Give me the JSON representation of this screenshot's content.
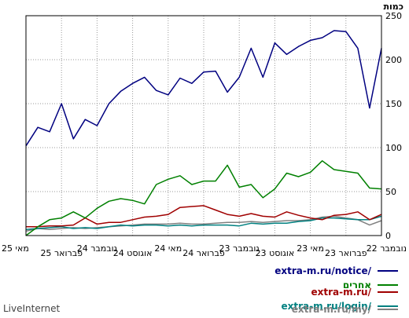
{
  "brand": "LiveInternet",
  "chart_data": {
    "type": "line",
    "ylabel": "כמות",
    "ylim": [
      0,
      250
    ],
    "yticks": [
      0,
      50,
      100,
      150,
      200,
      250
    ],
    "grid": true,
    "legend_position": "bottom-right",
    "x_tick_labels": [
      "22 נובמבר",
      "23 פברואר",
      "23 מאי",
      "23 אוגוסט",
      "23 נובמבר",
      "24 פברואר",
      "24 מאי",
      "24 אוגוסט",
      "24 נובמבר",
      "25 פברואר",
      "25 מאי"
    ],
    "x_direction": "right-to-left",
    "series": [
      {
        "name": "extra-m.ru/notice/",
        "color": "#000080",
        "values": [
          213,
          145,
          213,
          232,
          233,
          225,
          222,
          215,
          206,
          219,
          180,
          213,
          180,
          163,
          187,
          186,
          173,
          179,
          160,
          165,
          180,
          173,
          164,
          150,
          125,
          132,
          110,
          150,
          118,
          123,
          102
        ]
      },
      {
        "name": "אחרים",
        "color": "#008000",
        "values": [
          53,
          54,
          71,
          73,
          75,
          85,
          72,
          67,
          71,
          53,
          43,
          58,
          55,
          80,
          62,
          62,
          58,
          68,
          64,
          58,
          36,
          40,
          42,
          39,
          31,
          20,
          27,
          20,
          18,
          10,
          0
        ]
      },
      {
        "name": "extra-m.ru/",
        "color": "#a00000",
        "values": [
          24,
          18,
          27,
          24,
          23,
          18,
          20,
          23,
          27,
          21,
          22,
          25,
          22,
          24,
          29,
          34,
          33,
          32,
          24,
          22,
          21,
          18,
          15,
          15,
          13,
          20,
          12,
          11,
          11,
          10,
          10
        ]
      },
      {
        "name": "extra-m.ru/login/",
        "color": "#008080",
        "values": [
          22,
          18,
          18,
          19,
          20,
          20,
          17,
          16,
          14,
          14,
          13,
          14,
          11,
          12,
          12,
          12,
          11,
          12,
          11,
          12,
          12,
          11,
          12,
          10,
          8,
          9,
          8,
          10,
          9,
          8,
          7
        ]
      },
      {
        "name": "extra-m.ru/my/",
        "color": "#808080",
        "values": [
          17,
          12,
          18,
          20,
          22,
          21,
          18,
          17,
          17,
          16,
          15,
          16,
          15,
          15,
          14,
          13,
          13,
          14,
          13,
          13,
          13,
          12,
          11,
          10,
          9,
          8,
          9,
          8,
          7,
          8,
          5
        ]
      }
    ]
  }
}
